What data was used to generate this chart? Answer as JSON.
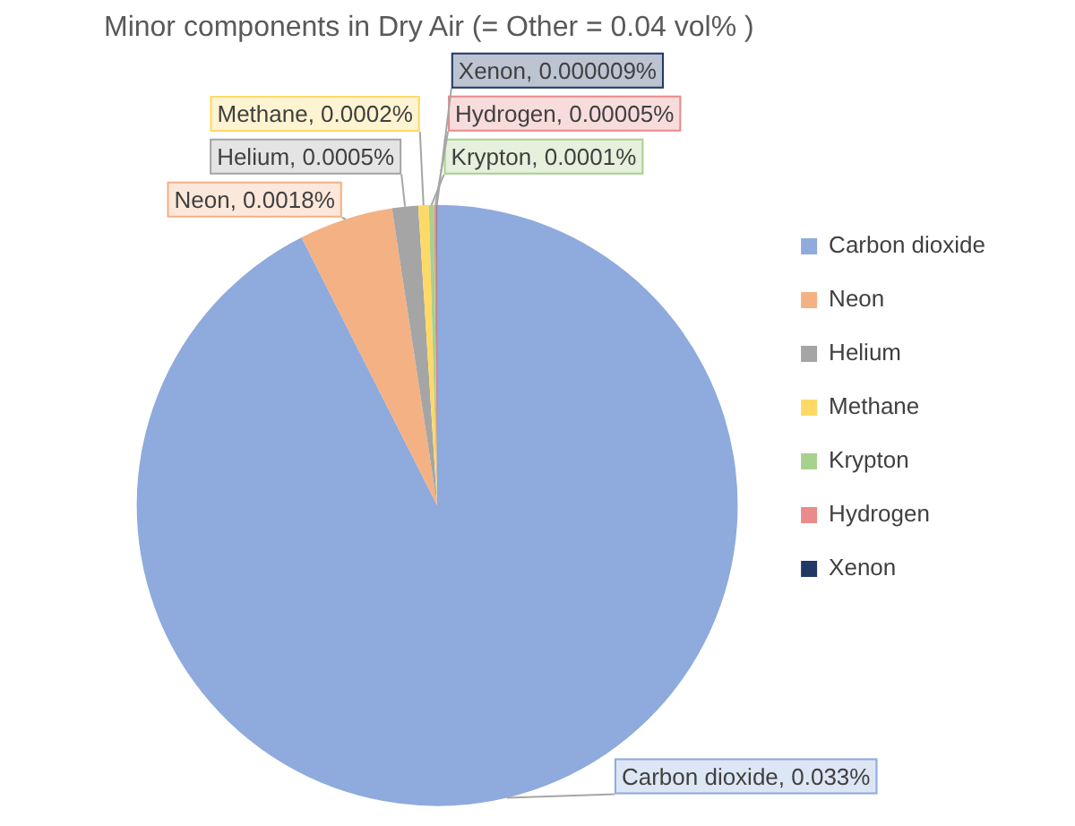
{
  "chart_data": {
    "type": "pie",
    "title": "Minor components in Dry Air (= Other = 0.04 vol% )",
    "categories": [
      "Carbon dioxide",
      "Neon",
      "Helium",
      "Methane",
      "Krypton",
      "Hydrogen",
      "Xenon"
    ],
    "values": [
      0.033,
      0.0018,
      0.0005,
      0.0002,
      0.0001,
      5e-05,
      9e-06
    ],
    "value_labels": [
      "Carbon dioxide, 0.033%",
      "Neon, 0.0018%",
      "Helium, 0.0005%",
      "Methane, 0.0002%",
      "Krypton, 0.0001%",
      "Hydrogen, 0.00005%",
      "Xenon, 0.000009%"
    ],
    "colors": [
      "#8faadc",
      "#f4b183",
      "#a5a5a5",
      "#ffd966",
      "#a9d18e",
      "#e98b8b",
      "#203864"
    ],
    "legend": "right"
  }
}
